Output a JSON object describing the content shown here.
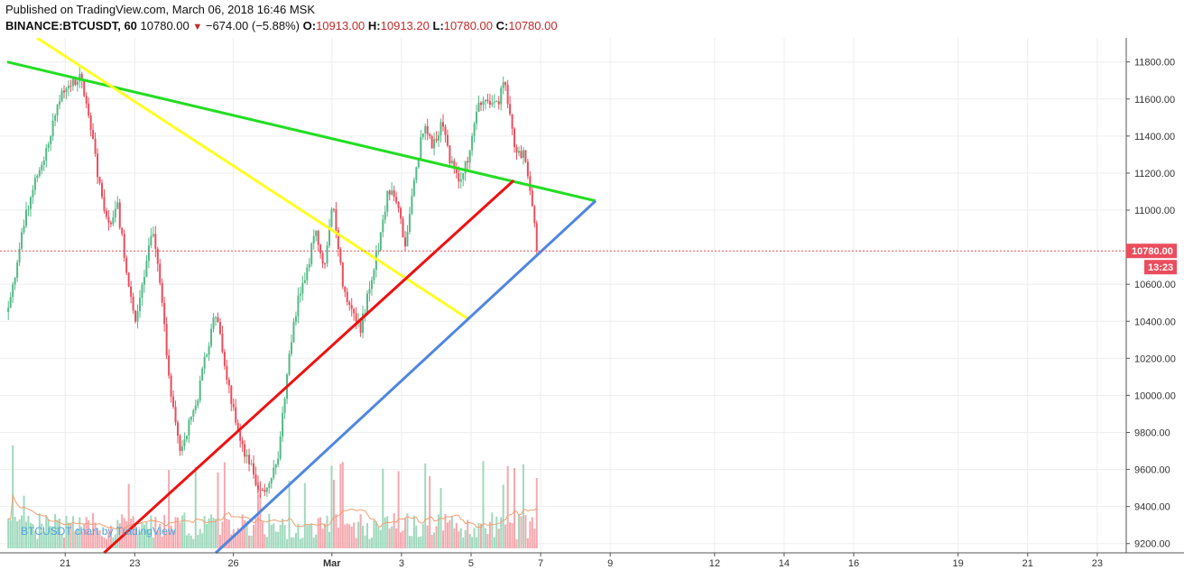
{
  "header": {
    "published": "Published on TradingView.com, March 06, 2018 16:46 MSK",
    "symbol": "BINANCE:BTCUSDT, 60",
    "last": "10780.00",
    "change": "−674.00 (−5.88%)",
    "o_label": "O:",
    "o_value": "10913.00",
    "h_label": "H:",
    "h_value": "10913.20",
    "l_label": "L:",
    "l_value": "10780.00",
    "c_label": "C:",
    "c_value": "10780.00"
  },
  "colors": {
    "up": "#53b987",
    "down": "#eb4d5c",
    "vol_up": "#9fd9bd",
    "vol_down": "#f4a8ae",
    "green_line": "#22dd22",
    "yellow_line": "#ffff22",
    "red_line": "#ee1111",
    "blue_line": "#4f86e0",
    "price_label_bg": "#eb4d5c"
  },
  "watermark": "BTCUSDT chart by TradingView",
  "price_label": {
    "value": "10780.00",
    "countdown": "13:23"
  },
  "chart_data": {
    "type": "candlestick",
    "x_ticks": [
      "21",
      "23",
      "26",
      "Mar",
      "3",
      "5",
      "7",
      "9",
      "12",
      "14",
      "16",
      "19",
      "21",
      "23"
    ],
    "y_ticks": [
      "11800.00",
      "11600.00",
      "11400.00",
      "11200.00",
      "11000.00",
      "10600.00",
      "10400.00",
      "10200.00",
      "10000.00",
      "9800.00",
      "9600.00",
      "9400.00",
      "9200.00"
    ],
    "ylim": [
      9150,
      11930
    ],
    "current_price": 10780,
    "price_path": [
      [
        0,
        10450
      ],
      [
        2,
        11000
      ],
      [
        4,
        11300
      ],
      [
        6,
        11650
      ],
      [
        8,
        11720
      ],
      [
        9,
        11500
      ],
      [
        10,
        11150
      ],
      [
        11,
        10900
      ],
      [
        12,
        11050
      ],
      [
        13,
        10700
      ],
      [
        14,
        10400
      ],
      [
        15,
        10650
      ],
      [
        16,
        10900
      ],
      [
        17,
        10500
      ],
      [
        18,
        10000
      ],
      [
        19,
        9700
      ],
      [
        20,
        9850
      ],
      [
        21,
        10000
      ],
      [
        22,
        10250
      ],
      [
        23,
        10450
      ],
      [
        24,
        10150
      ],
      [
        25,
        9900
      ],
      [
        26,
        9700
      ],
      [
        27,
        9600
      ],
      [
        28,
        9450
      ],
      [
        29,
        9550
      ],
      [
        30,
        9700
      ],
      [
        31,
        10200
      ],
      [
        32,
        10500
      ],
      [
        33,
        10650
      ],
      [
        34,
        10900
      ],
      [
        35,
        10700
      ],
      [
        36,
        11050
      ],
      [
        37,
        10600
      ],
      [
        38,
        10450
      ],
      [
        39,
        10350
      ],
      [
        40,
        10600
      ],
      [
        41,
        10800
      ],
      [
        42,
        11100
      ],
      [
        43,
        11050
      ],
      [
        44,
        10800
      ],
      [
        45,
        11200
      ],
      [
        46,
        11450
      ],
      [
        47,
        11350
      ],
      [
        48,
        11480
      ],
      [
        49,
        11250
      ],
      [
        50,
        11150
      ],
      [
        51,
        11300
      ],
      [
        52,
        11550
      ],
      [
        53,
        11600
      ],
      [
        54,
        11550
      ],
      [
        55,
        11700
      ],
      [
        56,
        11350
      ],
      [
        57,
        11300
      ],
      [
        58,
        11050
      ],
      [
        58.5,
        10780
      ]
    ],
    "trendlines": [
      {
        "name": "green",
        "from": [
          0,
          11800
        ],
        "to": [
          79,
          11050
        ]
      },
      {
        "name": "yellow",
        "from": [
          4,
          11930
        ],
        "to": [
          62,
          10410
        ]
      },
      {
        "name": "red",
        "from": [
          13,
          9150
        ],
        "to": [
          68,
          11160
        ]
      },
      {
        "name": "blue",
        "from": [
          28,
          9150
        ],
        "to": [
          79,
          11050
        ]
      }
    ]
  }
}
